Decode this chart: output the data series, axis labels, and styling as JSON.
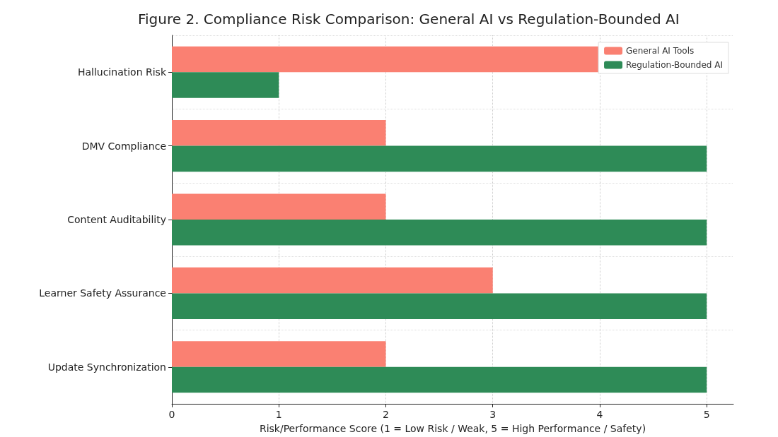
{
  "chart_data": {
    "type": "bar",
    "orientation": "horizontal",
    "title": "Figure 2. Compliance Risk Comparison: General AI vs Regulation-Bounded AI",
    "xlabel": "Risk/Performance Score (1 = Low Risk / Weak, 5 = High Performance / Safety)",
    "categories": [
      "Hallucination Risk",
      "DMV Compliance",
      "Content Auditability",
      "Learner Safety Assurance",
      "Update Synchronization"
    ],
    "series": [
      {
        "name": "General AI Tools",
        "color": "#fa8072",
        "values": [
          4,
          2,
          2,
          3,
          2
        ]
      },
      {
        "name": "Regulation-Bounded AI",
        "color": "#2e8b57",
        "values": [
          1,
          5,
          5,
          5,
          5
        ]
      }
    ],
    "xlim": [
      0,
      5.25
    ],
    "xticks": [
      0,
      1,
      2,
      3,
      4,
      5
    ],
    "grid": true,
    "legend": "top right"
  }
}
